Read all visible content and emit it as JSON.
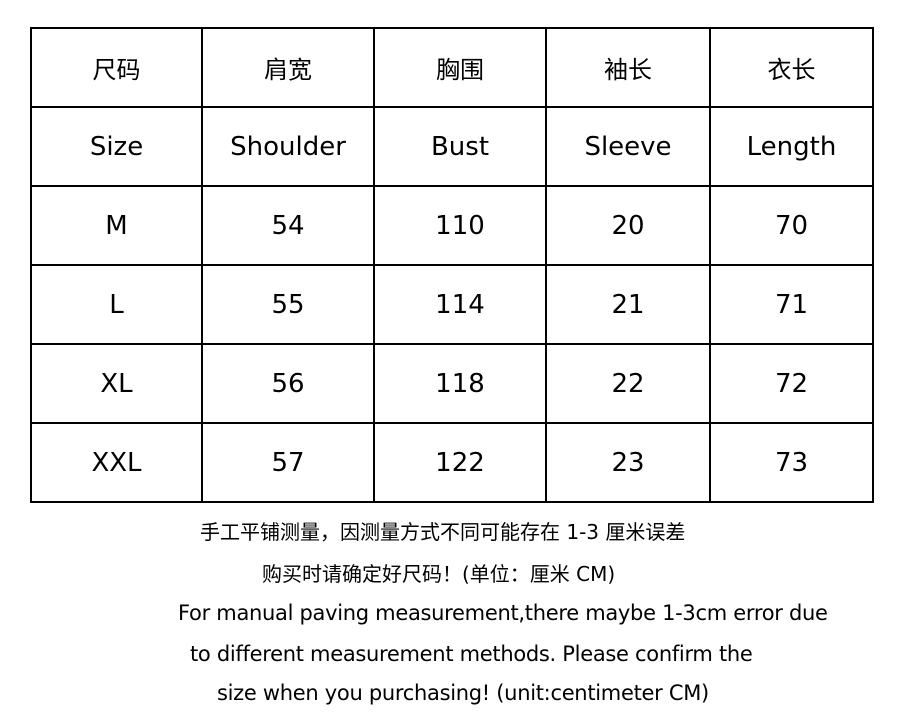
{
  "table": {
    "header_zh": [
      "尺码",
      "肩宽",
      "胸围",
      "袖长",
      "衣长"
    ],
    "header_en": [
      "Size",
      "Shoulder",
      "Bust",
      "Sleeve",
      "Length"
    ],
    "rows": [
      [
        "M",
        "54",
        "110",
        "20",
        "70"
      ],
      [
        "L",
        "55",
        "114",
        "21",
        "71"
      ],
      [
        "XL",
        "56",
        "118",
        "22",
        "72"
      ],
      [
        "XXL",
        "57",
        "122",
        "23",
        "73"
      ]
    ]
  },
  "notes": {
    "zh_line1": "手工平铺测量，因测量方式不同可能存在 1-3 厘米误差",
    "zh_line2": "购买时请确定好尺码！(单位：厘米 CM)",
    "en_line1": "For manual paving measurement,there maybe 1-3cm error due",
    "en_line2": "to different measurement methods. Please confirm the",
    "en_line3": "size when you purchasing! (unit:centimeter CM)"
  }
}
